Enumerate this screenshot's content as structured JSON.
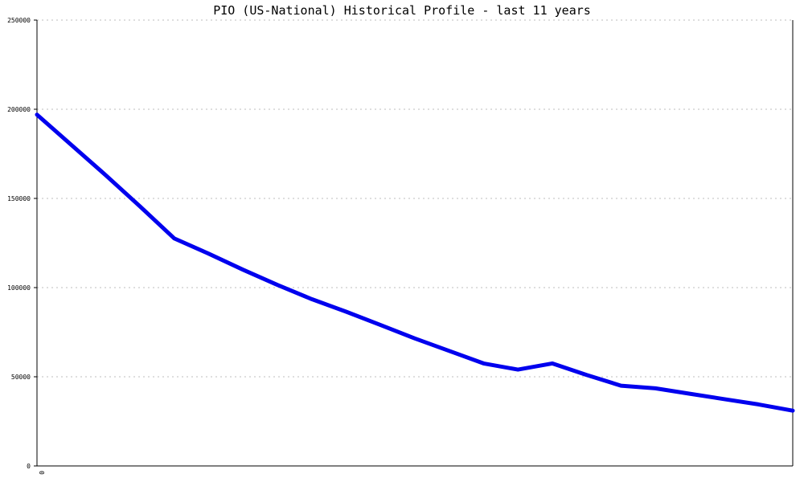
{
  "chart_data": {
    "type": "line",
    "title": "PIO (US-National) Historical Profile - last 11 years",
    "xlabel": "",
    "ylabel": "",
    "ylim": [
      0,
      250000
    ],
    "xlim": [
      0,
      22
    ],
    "yticks": [
      0,
      50000,
      100000,
      150000,
      200000,
      250000
    ],
    "ytick_labels": [
      "0",
      "50000",
      "100000",
      "150000",
      "200000",
      "250000"
    ],
    "xtick_labels": [
      "0"
    ],
    "grid": true,
    "legend": "none",
    "series": [
      {
        "color": "#0000ee",
        "x": [
          0,
          1,
          2,
          3,
          4,
          5,
          6,
          7,
          8,
          9,
          10,
          11,
          12,
          13,
          14,
          15,
          16,
          17,
          18,
          19,
          20,
          21,
          22
        ],
        "values": [
          197000,
          180000,
          163000,
          145500,
          127500,
          119000,
          110000,
          101500,
          93500,
          86500,
          79000,
          71500,
          64500,
          57500,
          54000,
          57500,
          51000,
          45000,
          43500,
          40500,
          37500,
          34500,
          31000
        ]
      }
    ]
  }
}
